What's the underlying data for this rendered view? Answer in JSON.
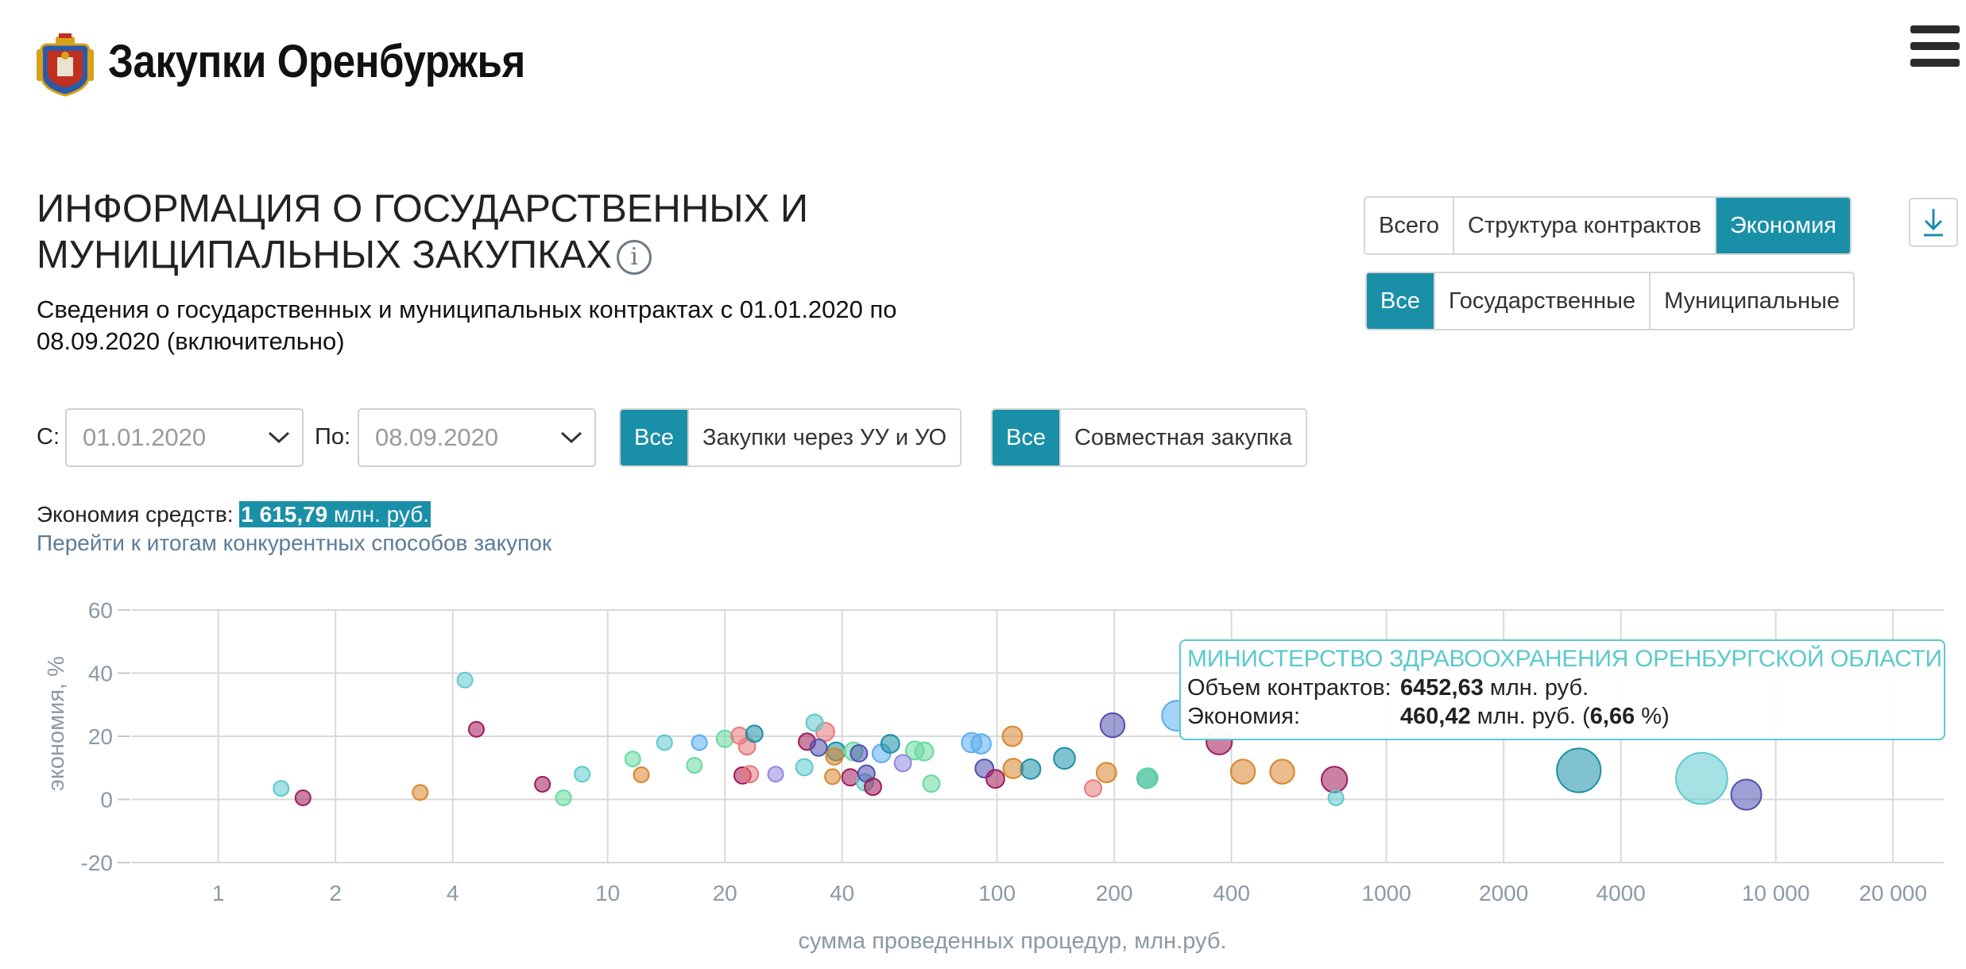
{
  "header": {
    "site_title": "Закупки Оренбуржья",
    "logo_icon": "coat-of-arms-icon",
    "menu_icon": "hamburger-menu-icon"
  },
  "page": {
    "title_line1": "ИНФОРМАЦИЯ О ГОСУДАРСТВЕННЫХ И",
    "title_line2": "МУНИЦИПАЛЬНЫХ ЗАКУПКАХ",
    "info_icon": "i",
    "subtitle": "Сведения о государственных и муниципальных контрактах с 01.01.2020 по 08.09.2020 (включительно)"
  },
  "view_tabs": {
    "items": [
      "Всего",
      "Структура контрактов",
      "Экономия"
    ],
    "active": "Экономия"
  },
  "type_tabs": {
    "items": [
      "Все",
      "Государственные",
      "Муниципальные"
    ],
    "active": "Все"
  },
  "filters": {
    "from_label": "С:",
    "from_value": "01.01.2020",
    "to_label": "По:",
    "to_value": "08.09.2020",
    "uu_group": {
      "all": "Все",
      "option": "Закупки через УУ и УО",
      "active": "Все"
    },
    "joint_group": {
      "all": "Все",
      "option": "Совместная закупка",
      "active": "Все"
    }
  },
  "summary": {
    "savings_label": "Экономия средств:",
    "savings_value": "1 615,79",
    "savings_unit": "млн. руб.",
    "link_text": "Перейти к итогам конкурентных способов закупок"
  },
  "tooltip": {
    "title": "МИНИСТЕРСТВО ЗДРАВООХРАНЕНИЯ ОРЕНБУРГСКОЙ ОБЛАСТИ",
    "volume_label": "Объем контрактов:",
    "volume_value": "6452,63",
    "volume_unit": "млн. руб.",
    "economy_label": "Экономия:",
    "economy_value": "460,42",
    "economy_unit_open": "млн. руб. (",
    "economy_percent": "6,66",
    "economy_unit_close": "%)"
  },
  "colors": {
    "accent": "#1a8fa8",
    "tooltip_border": "#5cc9cc",
    "link": "#5a7c9a"
  },
  "chart_data": {
    "type": "scatter",
    "subtype": "bubble",
    "xlabel": "сумма проведенных процедур, млн.руб.",
    "ylabel": "экономия, %",
    "x_scale": "log",
    "xlim": [
      0.6,
      27000
    ],
    "ylim": [
      -20,
      60
    ],
    "x_ticks": [
      1,
      2,
      4,
      10,
      20,
      40,
      100,
      200,
      400,
      1000,
      2000,
      4000,
      10000,
      20000
    ],
    "x_tick_labels": [
      "1",
      "2",
      "4",
      "10",
      "20",
      "40",
      "100",
      "200",
      "400",
      "1000",
      "2000",
      "4000",
      "10 000",
      "20 000"
    ],
    "y_ticks": [
      60,
      40,
      20,
      0,
      -20
    ],
    "y_tick_labels": [
      "60",
      "40",
      "20",
      "0",
      "-20"
    ],
    "grid": true,
    "legend": "none",
    "points": [
      {
        "x": 1.45,
        "y": 3.5,
        "r": 1,
        "c": "#5cc9cc"
      },
      {
        "x": 1.65,
        "y": 0.5,
        "r": 1,
        "c": "#a01a5a"
      },
      {
        "x": 3.3,
        "y": 2.2,
        "r": 1,
        "c": "#d9852c"
      },
      {
        "x": 4.3,
        "y": 37.8,
        "r": 1,
        "c": "#5cc9cc"
      },
      {
        "x": 4.6,
        "y": 22.2,
        "r": 1,
        "c": "#a01a5a"
      },
      {
        "x": 6.8,
        "y": 4.8,
        "r": 1,
        "c": "#a01a5a"
      },
      {
        "x": 7.7,
        "y": 0.5,
        "r": 1,
        "c": "#66d9a0"
      },
      {
        "x": 8.6,
        "y": 8,
        "r": 1,
        "c": "#5cc9cc"
      },
      {
        "x": 11.6,
        "y": 12.8,
        "r": 1,
        "c": "#66d9a0"
      },
      {
        "x": 12.2,
        "y": 7.8,
        "r": 1,
        "c": "#d9852c"
      },
      {
        "x": 14,
        "y": 18,
        "r": 1,
        "c": "#5cc9cc"
      },
      {
        "x": 16.7,
        "y": 10.8,
        "r": 1,
        "c": "#66d9a0"
      },
      {
        "x": 17.2,
        "y": 18,
        "r": 1,
        "c": "#5aaef0"
      },
      {
        "x": 20,
        "y": 19.2,
        "r": 1.1,
        "c": "#66d9a0"
      },
      {
        "x": 21.8,
        "y": 20.2,
        "r": 1.1,
        "c": "#e8797a"
      },
      {
        "x": 22.2,
        "y": 7.6,
        "r": 1.1,
        "c": "#a01a5a"
      },
      {
        "x": 22.8,
        "y": 16.8,
        "r": 1.1,
        "c": "#e8797a"
      },
      {
        "x": 23.2,
        "y": 8,
        "r": 1.1,
        "c": "#e8797a"
      },
      {
        "x": 23.8,
        "y": 20.8,
        "r": 1.1,
        "c": "#1a8fa8"
      },
      {
        "x": 27,
        "y": 8,
        "r": 1,
        "c": "#8f86e0"
      },
      {
        "x": 32,
        "y": 10.2,
        "r": 1.1,
        "c": "#5cc9cc"
      },
      {
        "x": 32.5,
        "y": 18.3,
        "r": 1.1,
        "c": "#a01a5a"
      },
      {
        "x": 34,
        "y": 24.3,
        "r": 1.1,
        "c": "#5cc9cc"
      },
      {
        "x": 34.8,
        "y": 16.4,
        "r": 1.1,
        "c": "#5050b0"
      },
      {
        "x": 36.2,
        "y": 21.4,
        "r": 1.2,
        "c": "#e8797a"
      },
      {
        "x": 37.8,
        "y": 7.2,
        "r": 1,
        "c": "#d9852c"
      },
      {
        "x": 38.2,
        "y": 13.6,
        "r": 1.1,
        "c": "#d9852c"
      },
      {
        "x": 38.6,
        "y": 15.2,
        "r": 1.2,
        "c": "#1a8fa8"
      },
      {
        "x": 42,
        "y": 7,
        "r": 1.1,
        "c": "#a01a5a"
      },
      {
        "x": 42.8,
        "y": 15.2,
        "r": 1.2,
        "c": "#66d9a0"
      },
      {
        "x": 44.2,
        "y": 14.6,
        "r": 1.1,
        "c": "#5050b0"
      },
      {
        "x": 45.8,
        "y": 5.4,
        "r": 1.1,
        "c": "#5cc9cc"
      },
      {
        "x": 46.2,
        "y": 8.2,
        "r": 1.1,
        "c": "#5050b0"
      },
      {
        "x": 48,
        "y": 4,
        "r": 1.1,
        "c": "#a01a5a"
      },
      {
        "x": 50.5,
        "y": 14.6,
        "r": 1.2,
        "c": "#5aaef0"
      },
      {
        "x": 53.2,
        "y": 17.6,
        "r": 1.2,
        "c": "#1a8fa8"
      },
      {
        "x": 57.3,
        "y": 11.5,
        "r": 1.1,
        "c": "#8f86e0"
      },
      {
        "x": 61.5,
        "y": 15.5,
        "r": 1.2,
        "c": "#66d9a0"
      },
      {
        "x": 65,
        "y": 15.2,
        "r": 1.2,
        "c": "#66d9a0"
      },
      {
        "x": 67.8,
        "y": 5,
        "r": 1.1,
        "c": "#66d9a0"
      },
      {
        "x": 86,
        "y": 18,
        "r": 1.3,
        "c": "#5aaef0"
      },
      {
        "x": 91,
        "y": 17.6,
        "r": 1.3,
        "c": "#5aaef0"
      },
      {
        "x": 92.8,
        "y": 9.8,
        "r": 1.2,
        "c": "#5050b0"
      },
      {
        "x": 99,
        "y": 6.5,
        "r": 1.2,
        "c": "#a01a5a"
      },
      {
        "x": 109.5,
        "y": 20,
        "r": 1.3,
        "c": "#d9852c"
      },
      {
        "x": 110,
        "y": 9.8,
        "r": 1.3,
        "c": "#d9852c"
      },
      {
        "x": 122,
        "y": 9.6,
        "r": 1.3,
        "c": "#1a8fa8"
      },
      {
        "x": 149,
        "y": 13,
        "r": 1.4,
        "c": "#1a8fa8"
      },
      {
        "x": 176.5,
        "y": 3.5,
        "r": 1.1,
        "c": "#e8797a"
      },
      {
        "x": 191,
        "y": 8.5,
        "r": 1.3,
        "c": "#d9852c"
      },
      {
        "x": 198,
        "y": 23.5,
        "r": 1.6,
        "c": "#5050b0"
      },
      {
        "x": 243,
        "y": 6.7,
        "r": 1.3,
        "c": "#1a8fa8"
      },
      {
        "x": 244,
        "y": 6.8,
        "r": 1.3,
        "c": "#66d9a0"
      },
      {
        "x": 290,
        "y": 26.5,
        "r": 2.0,
        "c": "#5aaef0"
      },
      {
        "x": 372,
        "y": 18.3,
        "r": 1.7,
        "c": "#a01a5a"
      },
      {
        "x": 428,
        "y": 8.8,
        "r": 1.6,
        "c": "#d9852c"
      },
      {
        "x": 540,
        "y": 8.8,
        "r": 1.6,
        "c": "#d9852c"
      },
      {
        "x": 735,
        "y": 6.3,
        "r": 1.7,
        "c": "#a01a5a"
      },
      {
        "x": 742,
        "y": 0.5,
        "r": 1,
        "c": "#5cc9cc"
      },
      {
        "x": 3120,
        "y": 9.2,
        "r": 2.9,
        "c": "#1a8fa8"
      },
      {
        "x": 6452.63,
        "y": 6.66,
        "r": 3.4,
        "c": "#5cc9cc"
      },
      {
        "x": 8400,
        "y": 1.5,
        "r": 2.0,
        "c": "#5050b0"
      }
    ]
  }
}
